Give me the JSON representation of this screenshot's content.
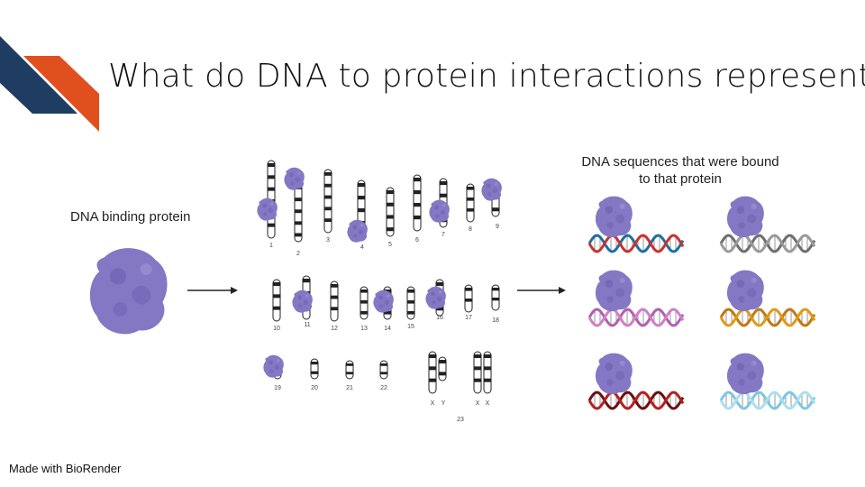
{
  "slide": {
    "title": "What do DNA to protein interactions represent?",
    "protein_label": "DNA binding protein",
    "sequences_label_line1": "DNA sequences that were bound",
    "sequences_label_line2": "to that protein",
    "footer": "Made with BioRender"
  },
  "karyotype": {
    "labels": [
      "1",
      "2",
      "3",
      "4",
      "5",
      "6",
      "7",
      "8",
      "9",
      "10",
      "11",
      "12",
      "13",
      "14",
      "15",
      "16",
      "17",
      "18",
      "19",
      "20",
      "21",
      "22",
      "X",
      "Y",
      "X",
      "X",
      "23"
    ]
  },
  "colors": {
    "accent_navy": "#1f3d63",
    "accent_orange": "#e0501f",
    "protein": "#8477c4",
    "dna_pairs": [
      [
        "#c83232",
        "#1f6fa0"
      ],
      [
        "#9a9a9a",
        "#6e6e6e"
      ],
      [
        "#d080c8",
        "#b060b0"
      ],
      [
        "#e09a18",
        "#c07a10"
      ],
      [
        "#b52020",
        "#6a1010"
      ],
      [
        "#a9e0f0",
        "#7cc8e0"
      ]
    ]
  }
}
